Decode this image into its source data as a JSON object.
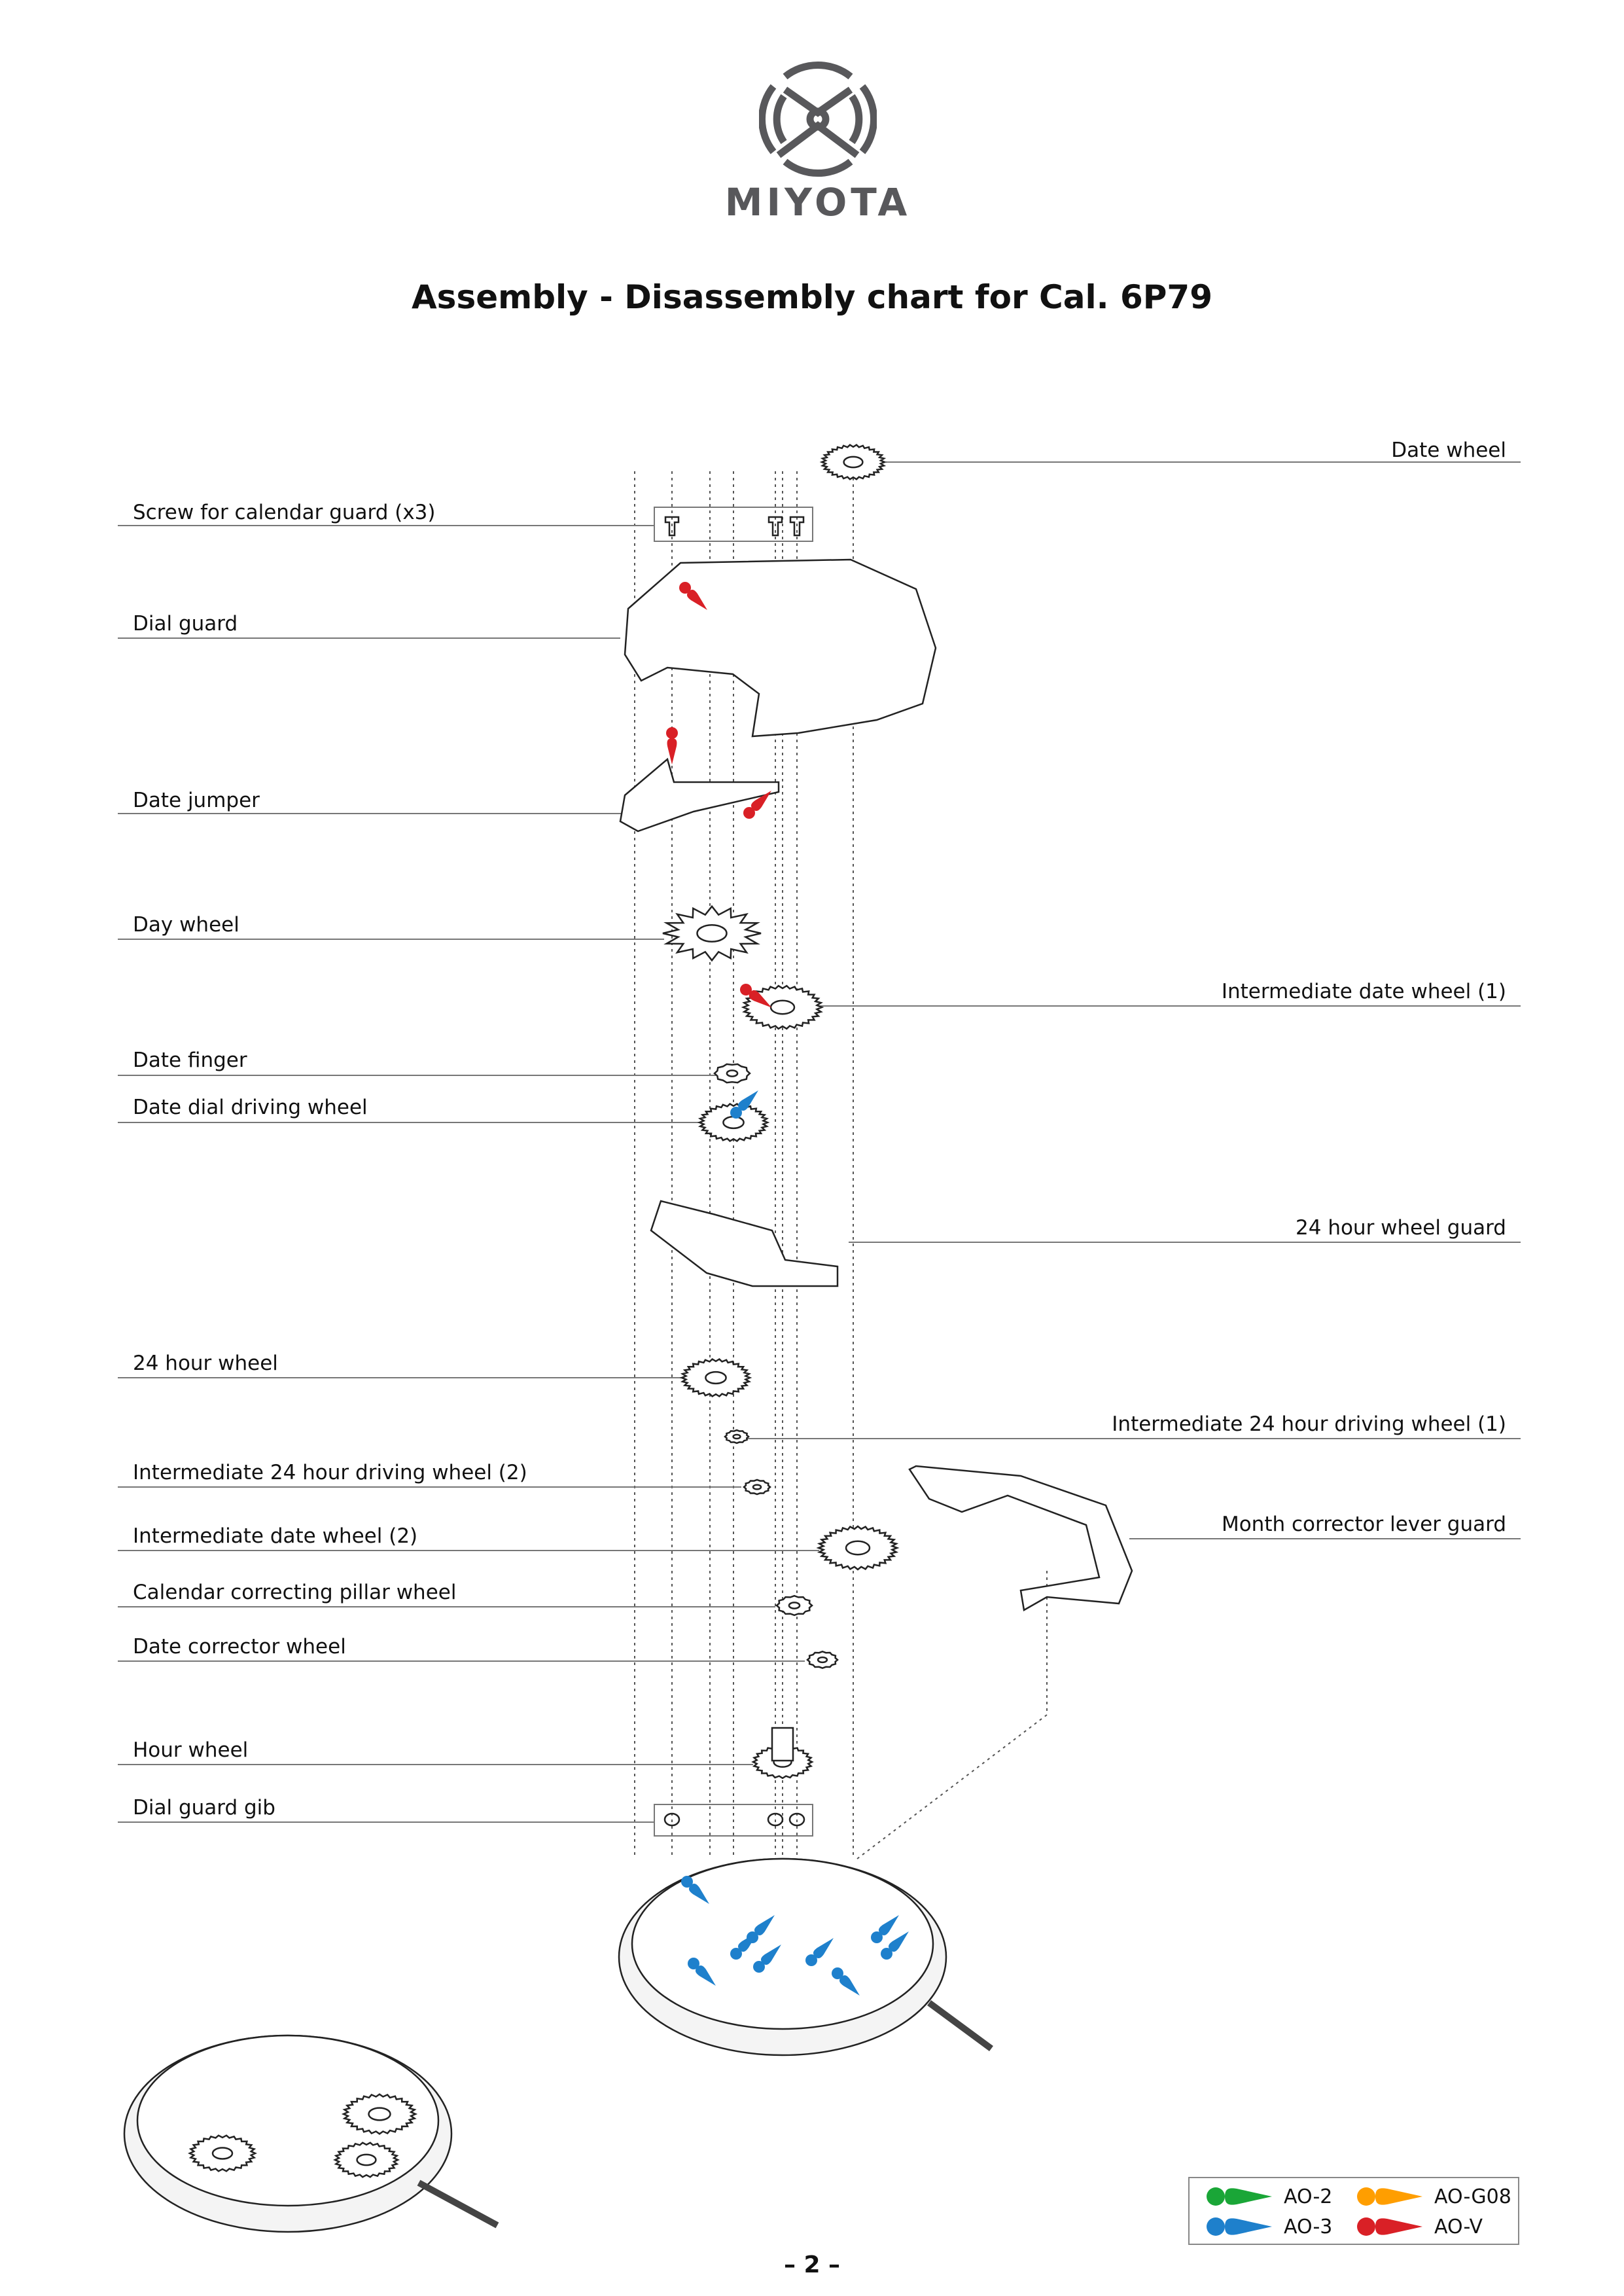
{
  "brand": {
    "name": "MIYOTA",
    "color": "#58585b"
  },
  "title": "Assembly - Disassembly chart for Cal. 6P79",
  "parts": {
    "date_wheel": "Date wheel",
    "screw": "Screw for calendar guard (x3)",
    "dial_guard": "Dial guard",
    "date_jumper": "Date jumper",
    "day_wheel": "Day wheel",
    "int_date_wheel_1": "Intermediate date wheel (1)",
    "date_finger": "Date finger",
    "date_dial_driving_wheel": "Date dial driving wheel",
    "hour24_wheel_guard": "24 hour wheel guard",
    "hour24_wheel": "24 hour wheel",
    "int_24h_driving_1": "Intermediate 24 hour driving wheel (1)",
    "int_24h_driving_2": "Intermediate 24 hour driving wheel (2)",
    "month_corrector_lever_guard": "Month corrector lever guard",
    "int_date_wheel_2": "Intermediate date wheel (2)",
    "pillar_wheel": "Calendar correcting pillar wheel",
    "date_corrector_wheel": "Date corrector wheel",
    "hour_wheel": "Hour wheel",
    "dial_guard_gib": "Dial guard gib"
  },
  "legend": [
    {
      "label": "AO-2",
      "color": "#1aa637"
    },
    {
      "label": "AO-G08",
      "color": "#ff9e00"
    },
    {
      "label": "AO-3",
      "color": "#1e80cc"
    },
    {
      "label": "AO-V",
      "color": "#d92026"
    }
  ],
  "page_number": "– 2 –"
}
